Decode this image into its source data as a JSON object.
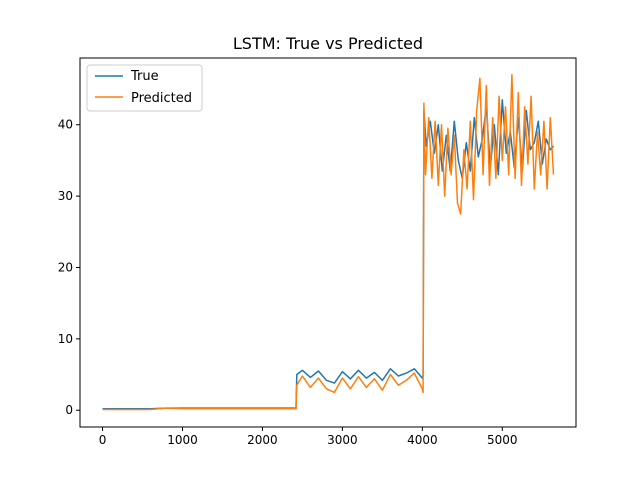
{
  "chart_data": {
    "type": "line",
    "title": "LSTM: True vs Predicted",
    "xlabel": "",
    "ylabel": "",
    "xlim": [
      -282,
      5922
    ],
    "ylim": [
      -2.35,
      49.35
    ],
    "x_ticks": [
      0,
      1000,
      2000,
      3000,
      4000,
      5000
    ],
    "y_ticks": [
      0,
      10,
      20,
      30,
      40
    ],
    "x_tick_labels": [
      "0",
      "1000",
      "2000",
      "3000",
      "4000",
      "5000"
    ],
    "y_tick_labels": [
      "0",
      "10",
      "20",
      "30",
      "40"
    ],
    "grid": false,
    "legend_position": "upper left",
    "series": [
      {
        "name": "True",
        "color": "#1f77b4",
        "x": [
          0,
          300,
          600,
          800,
          1000,
          1400,
          1800,
          2200,
          2400,
          2420,
          2430,
          2500,
          2600,
          2700,
          2800,
          2900,
          3000,
          3100,
          3200,
          3300,
          3400,
          3500,
          3600,
          3700,
          3800,
          3900,
          4000,
          4010,
          4020,
          4050,
          4100,
          4150,
          4200,
          4250,
          4300,
          4350,
          4400,
          4450,
          4500,
          4550,
          4600,
          4650,
          4700,
          4750,
          4800,
          4850,
          4900,
          4950,
          5000,
          5050,
          5100,
          5150,
          5200,
          5250,
          5300,
          5350,
          5400,
          5450,
          5500,
          5550,
          5600,
          5640
        ],
        "y": [
          0.2,
          0.2,
          0.2,
          0.3,
          0.3,
          0.3,
          0.3,
          0.3,
          0.3,
          0.3,
          5.0,
          5.6,
          4.6,
          5.5,
          4.2,
          3.8,
          5.4,
          4.4,
          5.6,
          4.5,
          5.3,
          4.2,
          5.8,
          4.8,
          5.2,
          5.8,
          4.5,
          5.0,
          42.0,
          37.0,
          40.5,
          36.0,
          40.0,
          33.5,
          38.5,
          33.5,
          40.5,
          35.0,
          32.5,
          37.5,
          33.5,
          41.0,
          35.5,
          38.0,
          42.5,
          34.0,
          40.0,
          33.0,
          43.5,
          36.0,
          39.0,
          34.0,
          41.0,
          33.5,
          42.0,
          36.5,
          37.5,
          40.5,
          34.5,
          38.0,
          36.5,
          37.0
        ]
      },
      {
        "name": "Predicted",
        "color": "#ff7f0e",
        "x": [
          0,
          300,
          600,
          800,
          1000,
          1400,
          1800,
          2200,
          2400,
          2420,
          2430,
          2500,
          2600,
          2700,
          2800,
          2900,
          3000,
          3100,
          3200,
          3300,
          3400,
          3500,
          3600,
          3700,
          3800,
          3900,
          4000,
          4010,
          4020,
          4040,
          4080,
          4120,
          4160,
          4200,
          4240,
          4280,
          4320,
          4360,
          4400,
          4440,
          4480,
          4520,
          4560,
          4600,
          4640,
          4680,
          4720,
          4760,
          4800,
          4840,
          4880,
          4920,
          4960,
          5000,
          5040,
          5080,
          5120,
          5160,
          5200,
          5240,
          5280,
          5320,
          5360,
          5400,
          5440,
          5480,
          5520,
          5560,
          5600,
          5640
        ],
        "y": [
          0.1,
          0.1,
          0.1,
          0.3,
          0.2,
          0.2,
          0.2,
          0.2,
          0.2,
          0.2,
          3.5,
          4.8,
          3.2,
          4.5,
          3.0,
          2.5,
          4.5,
          3.0,
          4.7,
          3.2,
          4.4,
          2.8,
          5.0,
          3.5,
          4.2,
          5.2,
          3.0,
          2.5,
          43.0,
          33.0,
          41.0,
          32.5,
          40.5,
          31.5,
          40.0,
          30.0,
          39.5,
          33.0,
          38.5,
          29.0,
          27.5,
          36.5,
          31.0,
          40.5,
          29.5,
          42.0,
          46.5,
          33.0,
          45.5,
          31.5,
          41.0,
          32.5,
          44.0,
          35.0,
          42.5,
          33.0,
          47.0,
          32.5,
          44.5,
          31.5,
          42.5,
          34.5,
          44.0,
          31.0,
          39.0,
          33.0,
          40.5,
          31.0,
          41.0,
          33.0
        ]
      }
    ]
  }
}
